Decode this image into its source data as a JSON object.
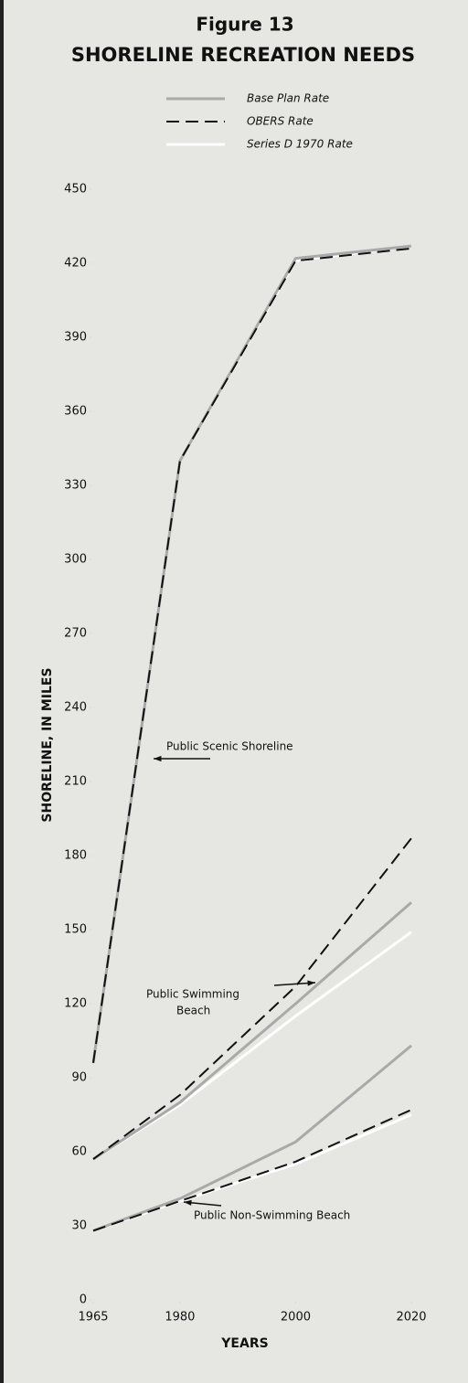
{
  "chart_data": {
    "type": "line",
    "title": "Figure 13",
    "subtitle": "SHORELINE RECREATION NEEDS",
    "x_label": "YEARS",
    "y_label": "SHORELINE, IN MILES",
    "x": [
      1965,
      1980,
      2000,
      2020
    ],
    "xlim": [
      1965,
      2020
    ],
    "xticks": [
      1965,
      1980,
      2000,
      2020
    ],
    "ylim": [
      0,
      450
    ],
    "yticks": [
      0,
      30,
      60,
      90,
      120,
      150,
      180,
      210,
      240,
      270,
      300,
      330,
      360,
      390,
      420,
      450
    ],
    "series": [
      {
        "name": "Base Plan Rate",
        "color": "#a9a9a9",
        "dashed": false,
        "values": [
          [
            96,
            340,
            422,
            427
          ],
          [
            57,
            80,
            120,
            161
          ],
          [
            28,
            41,
            64,
            103
          ]
        ]
      },
      {
        "name": "OBERS Rate",
        "color": "#111111",
        "dashed": true,
        "values": [
          [
            96,
            340,
            421,
            426
          ],
          [
            57,
            83,
            127,
            187
          ],
          [
            28,
            40,
            56,
            77
          ]
        ]
      },
      {
        "name": "Series D 1970 Rate",
        "color": "#ffffff",
        "dashed": false,
        "values": [
          [
            96,
            340,
            421,
            427
          ],
          [
            57,
            79,
            115,
            149
          ],
          [
            28,
            40,
            55,
            75
          ]
        ]
      }
    ],
    "annotations": [
      "Public Scenic Shoreline",
      "Public Swimming",
      "Beach",
      "Public Non-Swimming Beach"
    ]
  }
}
